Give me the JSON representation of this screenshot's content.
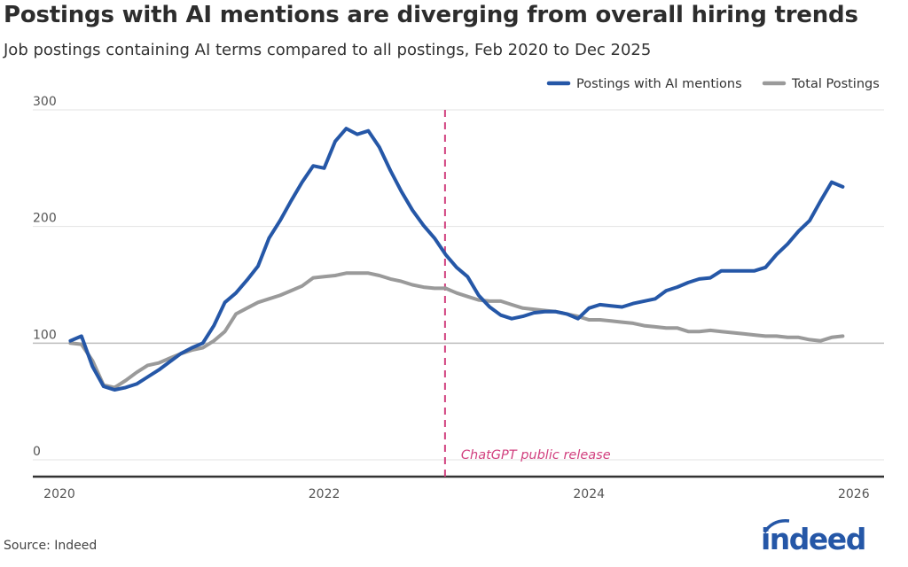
{
  "title": "Postings with AI mentions are diverging from overall hiring trends",
  "subtitle": "Job postings containing AI terms compared to all postings, Feb 2020 to Dec 2025",
  "source": "Source: Indeed",
  "logo_text": "indeed",
  "chart_data": {
    "type": "line",
    "title": "Postings with AI mentions are diverging from overall hiring trends",
    "subtitle": "Job postings containing AI terms compared to all postings, Feb 2020 to Dec 2025",
    "xlabel": "",
    "ylabel": "",
    "ylim": [
      0,
      300
    ],
    "xlim": [
      "2020-01",
      "2026-06"
    ],
    "yticks": [
      "0",
      "100",
      "200",
      "300"
    ],
    "xticks": [
      "2020",
      "2022",
      "2024",
      "2026"
    ],
    "grid": true,
    "legend_position": "top-right",
    "annotation": {
      "date": "2022-11-30",
      "label": "ChatGPT public release",
      "color": "#d1417f"
    },
    "x": [
      "2020-02",
      "2020-03",
      "2020-04",
      "2020-05",
      "2020-06",
      "2020-07",
      "2020-08",
      "2020-09",
      "2020-10",
      "2020-11",
      "2020-12",
      "2021-01",
      "2021-02",
      "2021-03",
      "2021-04",
      "2021-05",
      "2021-06",
      "2021-07",
      "2021-08",
      "2021-09",
      "2021-10",
      "2021-11",
      "2021-12",
      "2022-01",
      "2022-02",
      "2022-03",
      "2022-04",
      "2022-05",
      "2022-06",
      "2022-07",
      "2022-08",
      "2022-09",
      "2022-10",
      "2022-11",
      "2022-12",
      "2023-01",
      "2023-02",
      "2023-03",
      "2023-04",
      "2023-05",
      "2023-06",
      "2023-07",
      "2023-08",
      "2023-09",
      "2023-10",
      "2023-11",
      "2023-12",
      "2024-01",
      "2024-02",
      "2024-03",
      "2024-04",
      "2024-05",
      "2024-06",
      "2024-07",
      "2024-08",
      "2024-09",
      "2024-10",
      "2024-11",
      "2024-12",
      "2025-01",
      "2025-02",
      "2025-03",
      "2025-04",
      "2025-05",
      "2025-06",
      "2025-07",
      "2025-08",
      "2025-09",
      "2025-10",
      "2025-11",
      "2025-12"
    ],
    "series": [
      {
        "name": "Postings with AI mentions",
        "color": "#2557a7",
        "values": [
          102,
          106,
          80,
          63,
          60,
          62,
          65,
          71,
          77,
          84,
          91,
          96,
          100,
          115,
          135,
          143,
          154,
          166,
          190,
          205,
          222,
          238,
          252,
          250,
          273,
          284,
          279,
          282,
          268,
          248,
          230,
          214,
          201,
          190,
          176,
          165,
          157,
          141,
          131,
          124,
          121,
          123,
          126,
          127,
          127,
          125,
          121,
          130,
          133,
          132,
          131,
          134,
          136,
          138,
          145,
          148,
          152,
          155,
          156,
          162,
          162,
          162,
          162,
          165,
          176,
          185,
          196,
          205,
          222,
          238,
          234
        ]
      },
      {
        "name": "Total Postings",
        "color": "#9a9a9a",
        "values": [
          100,
          99,
          85,
          64,
          62,
          68,
          75,
          81,
          83,
          87,
          91,
          94,
          96,
          102,
          110,
          125,
          130,
          135,
          138,
          141,
          145,
          149,
          156,
          157,
          158,
          160,
          160,
          160,
          158,
          155,
          153,
          150,
          148,
          147,
          147,
          143,
          140,
          137,
          136,
          136,
          133,
          130,
          129,
          128,
          127,
          125,
          123,
          120,
          120,
          119,
          118,
          117,
          115,
          114,
          113,
          113,
          110,
          110,
          111,
          110,
          109,
          108,
          107,
          106,
          106,
          105,
          105,
          103,
          102,
          105,
          106
        ]
      }
    ]
  }
}
